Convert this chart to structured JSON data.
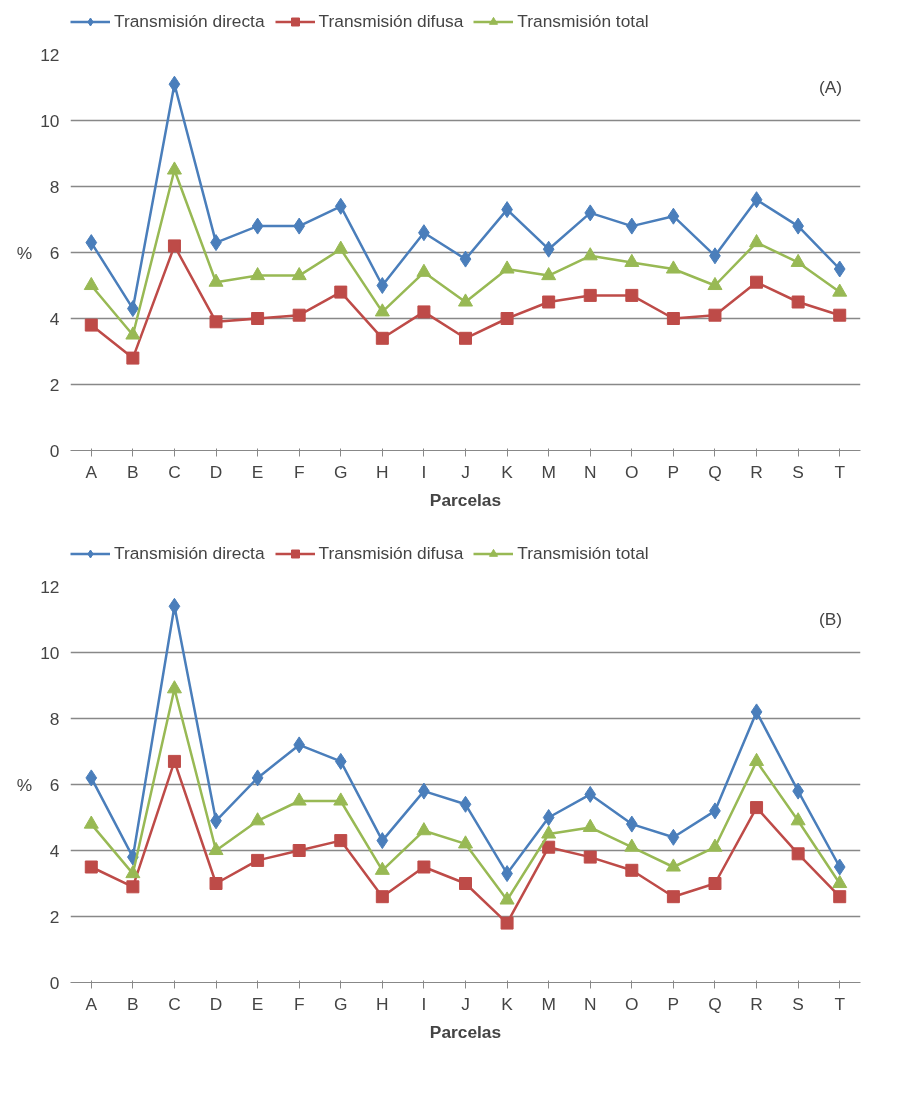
{
  "chart_data": [
    {
      "type": "line",
      "ylabel": "%",
      "xlabel": "Parcelas",
      "annotations": [
        "(A)"
      ],
      "categories": [
        "A",
        "B",
        "C",
        "D",
        "E",
        "F",
        "G",
        "H",
        "I",
        "J",
        "K",
        "M",
        "N",
        "O",
        "P",
        "Q",
        "R",
        "S",
        "T"
      ],
      "ylim": [
        0,
        12
      ],
      "yticks": [
        0,
        2,
        4,
        6,
        8,
        10,
        12
      ],
      "grid": "y",
      "legend": "top",
      "line_style": "solid",
      "series": [
        {
          "name": "Transmisión directa",
          "color": "#4a7ebb",
          "marker": "diamond",
          "values": [
            6.3,
            4.3,
            11.1,
            6.3,
            6.8,
            6.8,
            7.4,
            5.0,
            6.6,
            5.8,
            7.3,
            6.1,
            7.2,
            6.8,
            7.1,
            5.9,
            7.6,
            6.8,
            5.5
          ]
        },
        {
          "name": "Transmisión difusa",
          "color": "#be4b48",
          "marker": "square",
          "values": [
            3.8,
            2.8,
            6.2,
            3.9,
            4.0,
            4.1,
            4.8,
            3.4,
            4.2,
            3.4,
            4.0,
            4.5,
            4.7,
            4.7,
            4.0,
            4.1,
            5.1,
            4.5,
            4.1
          ]
        },
        {
          "name": "Transmisión total",
          "color": "#98b954",
          "marker": "triangle",
          "values": [
            5.0,
            3.5,
            8.5,
            5.1,
            5.3,
            5.3,
            6.1,
            4.2,
            5.4,
            4.5,
            5.5,
            5.3,
            5.9,
            5.7,
            5.5,
            5.0,
            6.3,
            5.7,
            4.8
          ]
        }
      ]
    },
    {
      "type": "line",
      "ylabel": "%",
      "xlabel": "Parcelas",
      "annotations": [
        "(B)"
      ],
      "categories": [
        "A",
        "B",
        "C",
        "D",
        "E",
        "F",
        "G",
        "H",
        "I",
        "J",
        "K",
        "M",
        "N",
        "O",
        "P",
        "Q",
        "R",
        "S",
        "T"
      ],
      "ylim": [
        0,
        12
      ],
      "yticks": [
        0,
        2,
        4,
        6,
        8,
        10,
        12
      ],
      "grid": "y",
      "legend": "top",
      "line_style": "solid",
      "series": [
        {
          "name": "Transmisión directa",
          "color": "#4a7ebb",
          "marker": "diamond",
          "values": [
            6.2,
            3.8,
            11.4,
            4.9,
            6.2,
            7.2,
            6.7,
            4.3,
            5.8,
            5.4,
            3.3,
            5.0,
            5.7,
            4.8,
            4.4,
            5.2,
            8.2,
            5.8,
            3.5
          ]
        },
        {
          "name": "Transmisión difusa",
          "color": "#be4b48",
          "marker": "square",
          "values": [
            3.5,
            2.9,
            6.7,
            3.0,
            3.7,
            4.0,
            4.3,
            2.6,
            3.5,
            3.0,
            1.8,
            4.1,
            3.8,
            3.4,
            2.6,
            3.0,
            5.3,
            3.9,
            2.6
          ]
        },
        {
          "name": "Transmisión total",
          "color": "#98b954",
          "marker": "triangle",
          "values": [
            4.8,
            3.3,
            8.9,
            4.0,
            4.9,
            5.5,
            5.5,
            3.4,
            4.6,
            4.2,
            2.5,
            4.5,
            4.7,
            4.1,
            3.5,
            4.1,
            6.7,
            4.9,
            3.0
          ]
        }
      ]
    }
  ]
}
